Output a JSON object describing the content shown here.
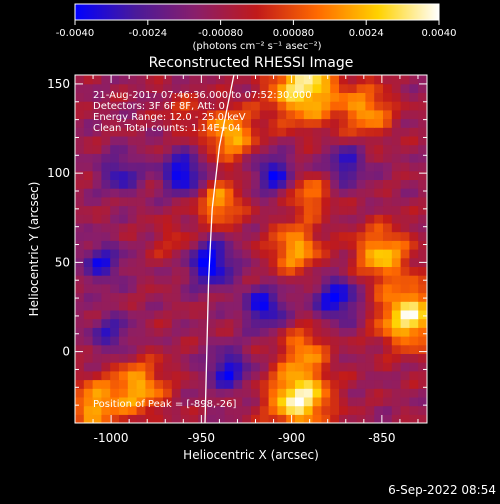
{
  "colorbar": {
    "ticks": [
      -0.004,
      -0.0024,
      -0.0008,
      0.0008,
      0.0024,
      0.004
    ],
    "tick_labels": [
      "-0.0040",
      "-0.0024",
      "-0.00080",
      "0.00080",
      "0.0024",
      "0.0040"
    ],
    "range": [
      -0.004,
      0.004
    ],
    "unit_label": "(photons cm⁻² s⁻¹ asec⁻²)"
  },
  "chart_data": {
    "type": "heatmap",
    "title": "Reconstructed RHESSI Image",
    "xlabel": "Heliocentric X (arcsec)",
    "ylabel": "Heliocentric Y (arcsec)",
    "xlim": [
      -1020,
      -825
    ],
    "ylim": [
      -40,
      155
    ],
    "x_ticks": [
      -1000,
      -950,
      -900,
      -850
    ],
    "x_tick_labels": [
      "-1000",
      "-950",
      "-900",
      "-850"
    ],
    "y_ticks": [
      0,
      50,
      100,
      150
    ],
    "y_tick_labels": [
      "0",
      "50",
      "100",
      "150"
    ],
    "grid_cells": 40,
    "colormap": [
      "#0000ff",
      "#4a1a9a",
      "#8a1e6a",
      "#c11a1a",
      "#ff6a00",
      "#ffd200",
      "#ffffff"
    ],
    "value_range": [
      -0.004,
      0.004
    ],
    "hotspots": [
      {
        "x": -893,
        "y": 148,
        "amp": 0.0042,
        "r": 14
      },
      {
        "x": -934,
        "y": 122,
        "amp": 0.0033,
        "r": 10
      },
      {
        "x": -940,
        "y": 83,
        "amp": 0.0029,
        "r": 9
      },
      {
        "x": -896,
        "y": -26,
        "amp": 0.0046,
        "r": 12
      },
      {
        "x": -893,
        "y": 2,
        "amp": 0.0024,
        "r": 9
      },
      {
        "x": -898,
        "y": 58,
        "amp": 0.0031,
        "r": 10
      },
      {
        "x": -890,
        "y": 88,
        "amp": 0.0025,
        "r": 8
      },
      {
        "x": -835,
        "y": 20,
        "amp": 0.0043,
        "r": 12
      },
      {
        "x": -850,
        "y": 55,
        "amp": 0.0033,
        "r": 11
      },
      {
        "x": -858,
        "y": 135,
        "amp": 0.0028,
        "r": 10
      },
      {
        "x": -985,
        "y": -20,
        "amp": 0.0031,
        "r": 11
      },
      {
        "x": -1010,
        "y": -30,
        "amp": 0.003,
        "r": 10
      },
      {
        "x": -965,
        "y": 62,
        "amp": 0.0012,
        "r": 8
      },
      {
        "x": -960,
        "y": 135,
        "amp": 0.0012,
        "r": 8
      }
    ],
    "coldspots": [
      {
        "x": -960,
        "y": 100,
        "amp": -0.0034,
        "r": 8
      },
      {
        "x": -945,
        "y": 50,
        "amp": -0.0034,
        "r": 9
      },
      {
        "x": -910,
        "y": 100,
        "amp": -0.0028,
        "r": 8
      },
      {
        "x": -915,
        "y": 25,
        "amp": -0.003,
        "r": 8
      },
      {
        "x": -935,
        "y": -10,
        "amp": -0.0028,
        "r": 8
      },
      {
        "x": -875,
        "y": 30,
        "amp": -0.003,
        "r": 9
      },
      {
        "x": -1005,
        "y": 50,
        "amp": -0.0024,
        "r": 8
      },
      {
        "x": -995,
        "y": 100,
        "amp": -0.0022,
        "r": 8
      },
      {
        "x": -870,
        "y": 105,
        "amp": -0.0024,
        "r": 8
      },
      {
        "x": -1000,
        "y": 10,
        "amp": -0.002,
        "r": 8
      }
    ],
    "limb_curve": [
      [
        -948,
        -40
      ],
      [
        -947,
        0
      ],
      [
        -946,
        40
      ],
      [
        -944,
        80
      ],
      [
        -940,
        115
      ],
      [
        -936,
        135
      ],
      [
        -932,
        155
      ]
    ],
    "annotations": [
      "21-Aug-2017 07:46:36.000 to 07:52:30.000",
      "Detectors: 3F 6F 8F, Att: 0",
      "Energy Range: 12.0 - 25.0 keV",
      "Clean    Total counts: 1.14E+04"
    ],
    "peak_label": "Position of Peak = [-898,-26]"
  },
  "footer": {
    "date": "6-Sep-2022 08:54"
  }
}
